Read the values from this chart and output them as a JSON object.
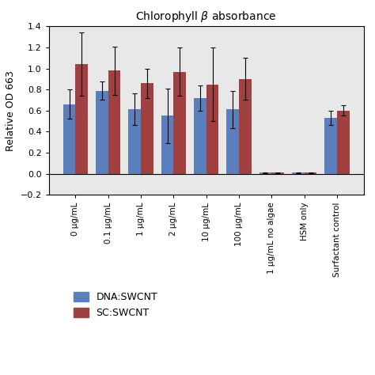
{
  "title": "Chlorophyll $\\beta$ absorbance",
  "ylabel": "Relative OD 663",
  "categories": [
    "0 μg/mL",
    "0.1 μg/mL",
    "1 μg/mL",
    "2 μg/mL",
    "10 μg/mL",
    "100 μg/mL",
    "1 μg/mL no algae",
    "HSM only",
    "Surfactant control"
  ],
  "dna_values": [
    0.66,
    0.79,
    0.61,
    0.55,
    0.72,
    0.61,
    0.01,
    0.01,
    0.53
  ],
  "sc_values": [
    1.04,
    0.98,
    0.86,
    0.97,
    0.85,
    0.9,
    0.01,
    0.01,
    0.6
  ],
  "dna_errors": [
    0.14,
    0.09,
    0.15,
    0.26,
    0.12,
    0.18,
    0.005,
    0.005,
    0.07
  ],
  "sc_errors": [
    0.3,
    0.23,
    0.14,
    0.23,
    0.35,
    0.2,
    0.005,
    0.005,
    0.05
  ],
  "dna_color": "#5b7fbc",
  "sc_color": "#a04040",
  "ylim": [
    -0.2,
    1.4
  ],
  "yticks": [
    -0.2,
    0.0,
    0.2,
    0.4,
    0.6,
    0.8,
    1.0,
    1.2,
    1.4
  ],
  "bar_width": 0.38,
  "legend_labels": [
    "DNA:SWCNT",
    "SC:SWCNT"
  ],
  "figsize": [
    4.74,
    4.74
  ],
  "dpi": 100,
  "plot_bg": "#e8e8e8"
}
